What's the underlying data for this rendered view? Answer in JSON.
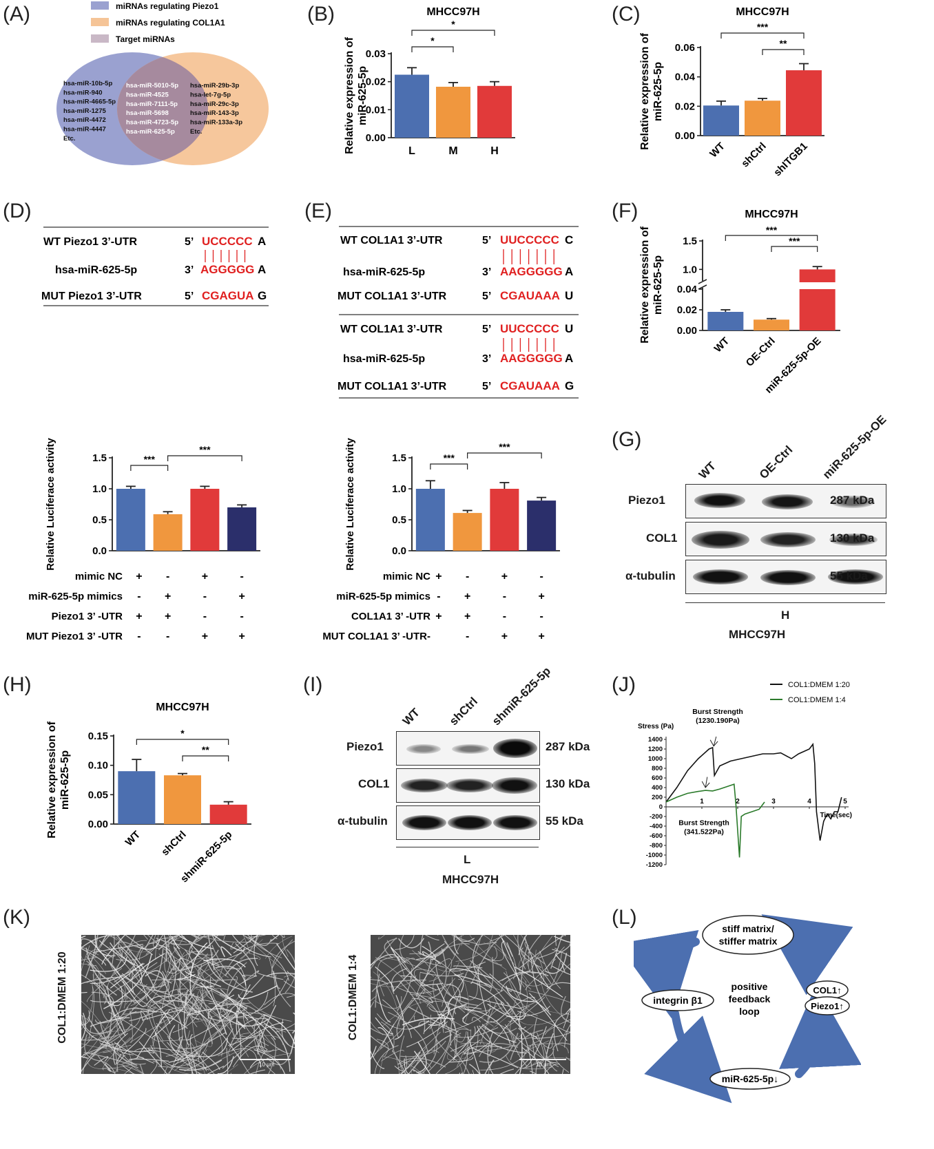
{
  "colors": {
    "blue": "#4c6fb0",
    "orange": "#f0973e",
    "red": "#e13a3a",
    "navy": "#2b2f6b",
    "venn_left": "#9aa1d0",
    "venn_right": "#f5c497",
    "venn_mid": "#a68a9e"
  },
  "panels": {
    "A": "(A)",
    "B": "(B)",
    "C": "(C)",
    "D": "(D)",
    "E": "(E)",
    "F": "(F)",
    "G": "(G)",
    "H": "(H)",
    "I": "(I)",
    "J": "(J)",
    "K": "(K)",
    "L": "(L)"
  },
  "venn": {
    "legend": [
      "miRNAs regulating Piezo1",
      "miRNAs regulating COL1A1",
      "Target miRNAs"
    ],
    "left": [
      "hsa-miR-10b-5p",
      "hsa-miR-940",
      "hsa-miR-4665-5p",
      "hsa-miR-1275",
      "hsa-miR-4472",
      "hsa-miR-4447",
      "Etc."
    ],
    "mid": [
      "hsa-miR-5010-5p",
      "hsa-miR-4525",
      "hsa-miR-7111-5p",
      "hsa-miR-5698",
      "hsa-miR-4723-5p",
      "hsa-miR-625-5p"
    ],
    "right": [
      "hsa-miR-29b-3p",
      "hsa-let-7g-5p",
      "hsa-miR-29c-3p",
      "hsa-miR-143-3p",
      "hsa-miR-133a-3p",
      "Etc."
    ]
  },
  "chart_data": [
    {
      "id": "B",
      "type": "bar",
      "title": "MHCC97H",
      "ylabel": "Relative expression of miR-625-5p",
      "categories": [
        "L",
        "M",
        "H"
      ],
      "values": [
        0.0225,
        0.0182,
        0.0185
      ],
      "errors": [
        0.0025,
        0.0015,
        0.0015
      ],
      "ylim": [
        0,
        0.03
      ],
      "yticks": [
        "0.00",
        "0.01",
        "0.02",
        "0.03"
      ],
      "sig": [
        {
          "from": 0,
          "to": 1,
          "label": "*"
        },
        {
          "from": 0,
          "to": 2,
          "label": "*"
        }
      ]
    },
    {
      "id": "C",
      "type": "bar",
      "title": "MHCC97H",
      "ylabel": "Relative expression of miR-625-5p",
      "categories": [
        "WT",
        "shCtrl",
        "shITGB1"
      ],
      "values": [
        0.0205,
        0.0238,
        0.0445
      ],
      "errors": [
        0.003,
        0.0015,
        0.0045
      ],
      "ylim": [
        0,
        0.06
      ],
      "yticks": [
        "0.00",
        "0.02",
        "0.04",
        "0.06"
      ],
      "sig": [
        {
          "from": 0,
          "to": 2,
          "label": "***"
        },
        {
          "from": 1,
          "to": 2,
          "label": "**"
        }
      ]
    },
    {
      "id": "F",
      "type": "bar",
      "title": "MHCC97H",
      "ylabel": "Relative expression of miR-625-5p",
      "categories": [
        "WT",
        "OE-Ctrl",
        "miR-625-5p-OE"
      ],
      "values": [
        0.018,
        0.0105,
        1.0
      ],
      "errors": [
        0.002,
        0.001,
        0.05
      ],
      "yticks": [
        "0.00",
        "0.02",
        "0.04",
        "1.0",
        "1.5"
      ],
      "axis_break": true,
      "sig": [
        {
          "from": 0,
          "to": 2,
          "label": "***"
        },
        {
          "from": 1,
          "to": 2,
          "label": "***"
        }
      ]
    },
    {
      "id": "D2",
      "type": "bar",
      "ylabel": "Relative Luciferace activity",
      "values": [
        1.0,
        0.59,
        1.0,
        0.7
      ],
      "errors": [
        0.04,
        0.04,
        0.04,
        0.04
      ],
      "ylim": [
        0,
        1.5
      ],
      "yticks": [
        "0.0",
        "0.5",
        "1.0",
        "1.5"
      ],
      "sig": [
        {
          "from": 0,
          "to": 1,
          "label": "***"
        },
        {
          "from": 1,
          "to": 3,
          "label": "***"
        }
      ],
      "rows": [
        {
          "label": "mimic NC",
          "marks": [
            "+",
            "-",
            "+",
            "-"
          ]
        },
        {
          "label": "miR-625-5p mimics",
          "marks": [
            "-",
            "+",
            "-",
            "+"
          ]
        },
        {
          "label": "Piezo1 3’ -UTR",
          "marks": [
            "+",
            "+",
            "-",
            "-"
          ]
        },
        {
          "label": "MUT Piezo1 3’ -UTR",
          "marks": [
            "-",
            "-",
            "+",
            "+"
          ]
        }
      ]
    },
    {
      "id": "E2",
      "type": "bar",
      "ylabel": "Relative Luciferace activity",
      "values": [
        1.0,
        0.61,
        1.0,
        0.81
      ],
      "errors": [
        0.13,
        0.04,
        0.1,
        0.05
      ],
      "ylim": [
        0,
        1.5
      ],
      "yticks": [
        "0.0",
        "0.5",
        "1.0",
        "1.5"
      ],
      "sig": [
        {
          "from": 0,
          "to": 1,
          "label": "***"
        },
        {
          "from": 1,
          "to": 3,
          "label": "***"
        }
      ],
      "rows": [
        {
          "label": "mimic NC",
          "marks": [
            "+",
            "-",
            "+",
            "-"
          ]
        },
        {
          "label": "miR-625-5p mimics",
          "marks": [
            "-",
            "+",
            "-",
            "+"
          ]
        },
        {
          "label": "COL1A1 3’ -UTR",
          "marks": [
            "+",
            "+",
            "-",
            "-"
          ]
        },
        {
          "label": "MUT COL1A1 3’ -UTR-",
          "marks": [
            "",
            "-",
            "+",
            "+"
          ]
        }
      ]
    },
    {
      "id": "H",
      "type": "bar",
      "title": "MHCC97H",
      "ylabel": "Relative expression of miR-625-5p",
      "categories": [
        "WT",
        "shCtrl",
        "shmiR-625-5p"
      ],
      "values": [
        0.09,
        0.083,
        0.033
      ],
      "errors": [
        0.02,
        0.003,
        0.005
      ],
      "ylim": [
        0,
        0.15
      ],
      "yticks": [
        "0.00",
        "0.05",
        "0.10",
        "0.15"
      ],
      "sig": [
        {
          "from": 0,
          "to": 2,
          "label": "*"
        },
        {
          "from": 1,
          "to": 2,
          "label": "**"
        }
      ]
    },
    {
      "id": "J",
      "type": "line",
      "ylabel": "Stress (Pa)",
      "xlabel": "Time(sec)",
      "ylim": [
        -1200,
        1400
      ],
      "xlim": [
        0,
        5
      ],
      "yticks": [
        "1400",
        "1200",
        "1000",
        "800",
        "600",
        "400",
        "200",
        "0",
        "-200",
        "-400",
        "-600",
        "-800",
        "-1000",
        "-1200"
      ],
      "xticks": [
        "1",
        "2",
        "3",
        "4",
        "5"
      ],
      "series": [
        {
          "name": "COL1:DMEM 1:20",
          "color": "#111111",
          "x": [
            0,
            0.3,
            0.6,
            0.9,
            1.2,
            1.3,
            1.35,
            1.5,
            1.8,
            2.1,
            2.4,
            2.7,
            3.0,
            3.2,
            3.5,
            3.7,
            4.0,
            4.1,
            4.15,
            4.2,
            4.3,
            4.4,
            4.5,
            4.6,
            4.7,
            4.8,
            4.9
          ],
          "y": [
            100,
            400,
            750,
            1000,
            1200,
            1230,
            650,
            850,
            950,
            1000,
            1050,
            1100,
            1100,
            1120,
            1000,
            1100,
            1200,
            1300,
            900,
            -100,
            -700,
            -300,
            -150,
            -250,
            -100,
            -100,
            200
          ]
        },
        {
          "name": "COL1:DMEM 1:4",
          "color": "#2a7a2a",
          "x": [
            0,
            0.3,
            0.6,
            0.9,
            1.1,
            1.3,
            1.5,
            1.7,
            1.9,
            1.95,
            2.0,
            2.05,
            2.1,
            2.2,
            2.4,
            2.6,
            2.75
          ],
          "y": [
            100,
            200,
            280,
            320,
            341,
            330,
            370,
            420,
            470,
            50,
            -500,
            -1050,
            -200,
            -150,
            -100,
            -50,
            100
          ]
        }
      ],
      "annotations": [
        {
          "text": "Burst Strength",
          "value": "(1230.190Pa)"
        },
        {
          "text": "Burst Strength",
          "value": "(341.522Pa)"
        }
      ]
    }
  ],
  "seqD": {
    "r1": "WT Piezo1 3’-UTR",
    "r2": "hsa-miR-625-5p",
    "r3": "MUT Piezo1 3’-UTR",
    "p1": "5’",
    "p2": "3’",
    "p3": "5’",
    "s1a": "UCCCCC",
    "s1b": "A",
    "s2a": "AGGGGG",
    "s2b": "A",
    "s3a": "CGAGUA",
    "s3b": "G"
  },
  "seqE": {
    "r1": "WT COL1A1 3’-UTR",
    "r2": "hsa-miR-625-5p",
    "r3": "MUT COL1A1 3’-UTR",
    "r4": "WT COL1A1 3’-UTR",
    "r5": "hsa-miR-625-5p",
    "r6": "MUT COL1A1 3’-UTR",
    "p5": "5’",
    "p3": "3’",
    "s1a": "UUCCCCC",
    "s1b": "C",
    "s2a": "AAGGGGG",
    "s2b": "A",
    "s3a": "CGAUAAA",
    "s3b": "U",
    "s4a": "UUCCCCC",
    "s4b": "U",
    "s5a": "AAGGGGG",
    "s5b": "A",
    "s6a": "CGAUAAA",
    "s6b": "G"
  },
  "blotG": {
    "lanes": [
      "WT",
      "OE-Ctrl",
      "miR-625-5p-OE"
    ],
    "proteins": [
      "Piezo1",
      "COL1",
      "α-tubulin"
    ],
    "sizes": [
      "287 kDa",
      "130 kDa",
      "55 kDa"
    ],
    "group": "H",
    "cell": "MHCC97H"
  },
  "blotI": {
    "lanes": [
      "WT",
      "shCtrl",
      "shmiR-625-5p"
    ],
    "proteins": [
      "Piezo1",
      "COL1",
      "α-tubulin"
    ],
    "sizes": [
      "287 kDa",
      "130 kDa",
      "55 kDa"
    ],
    "group": "L",
    "cell": "MHCC97H"
  },
  "semK": {
    "left_label": "COL1:DMEM 1:20",
    "right_label": "COL1:DMEM 1:4",
    "scale": "10 μm"
  },
  "loopL": {
    "top": "stiff matrix/ stiffer matrix",
    "left": "integrin β1",
    "right1": "COL1↑",
    "right2": "Piezo1↑",
    "bottom": "miR-625-5p↓",
    "center": "positive feedback loop"
  }
}
